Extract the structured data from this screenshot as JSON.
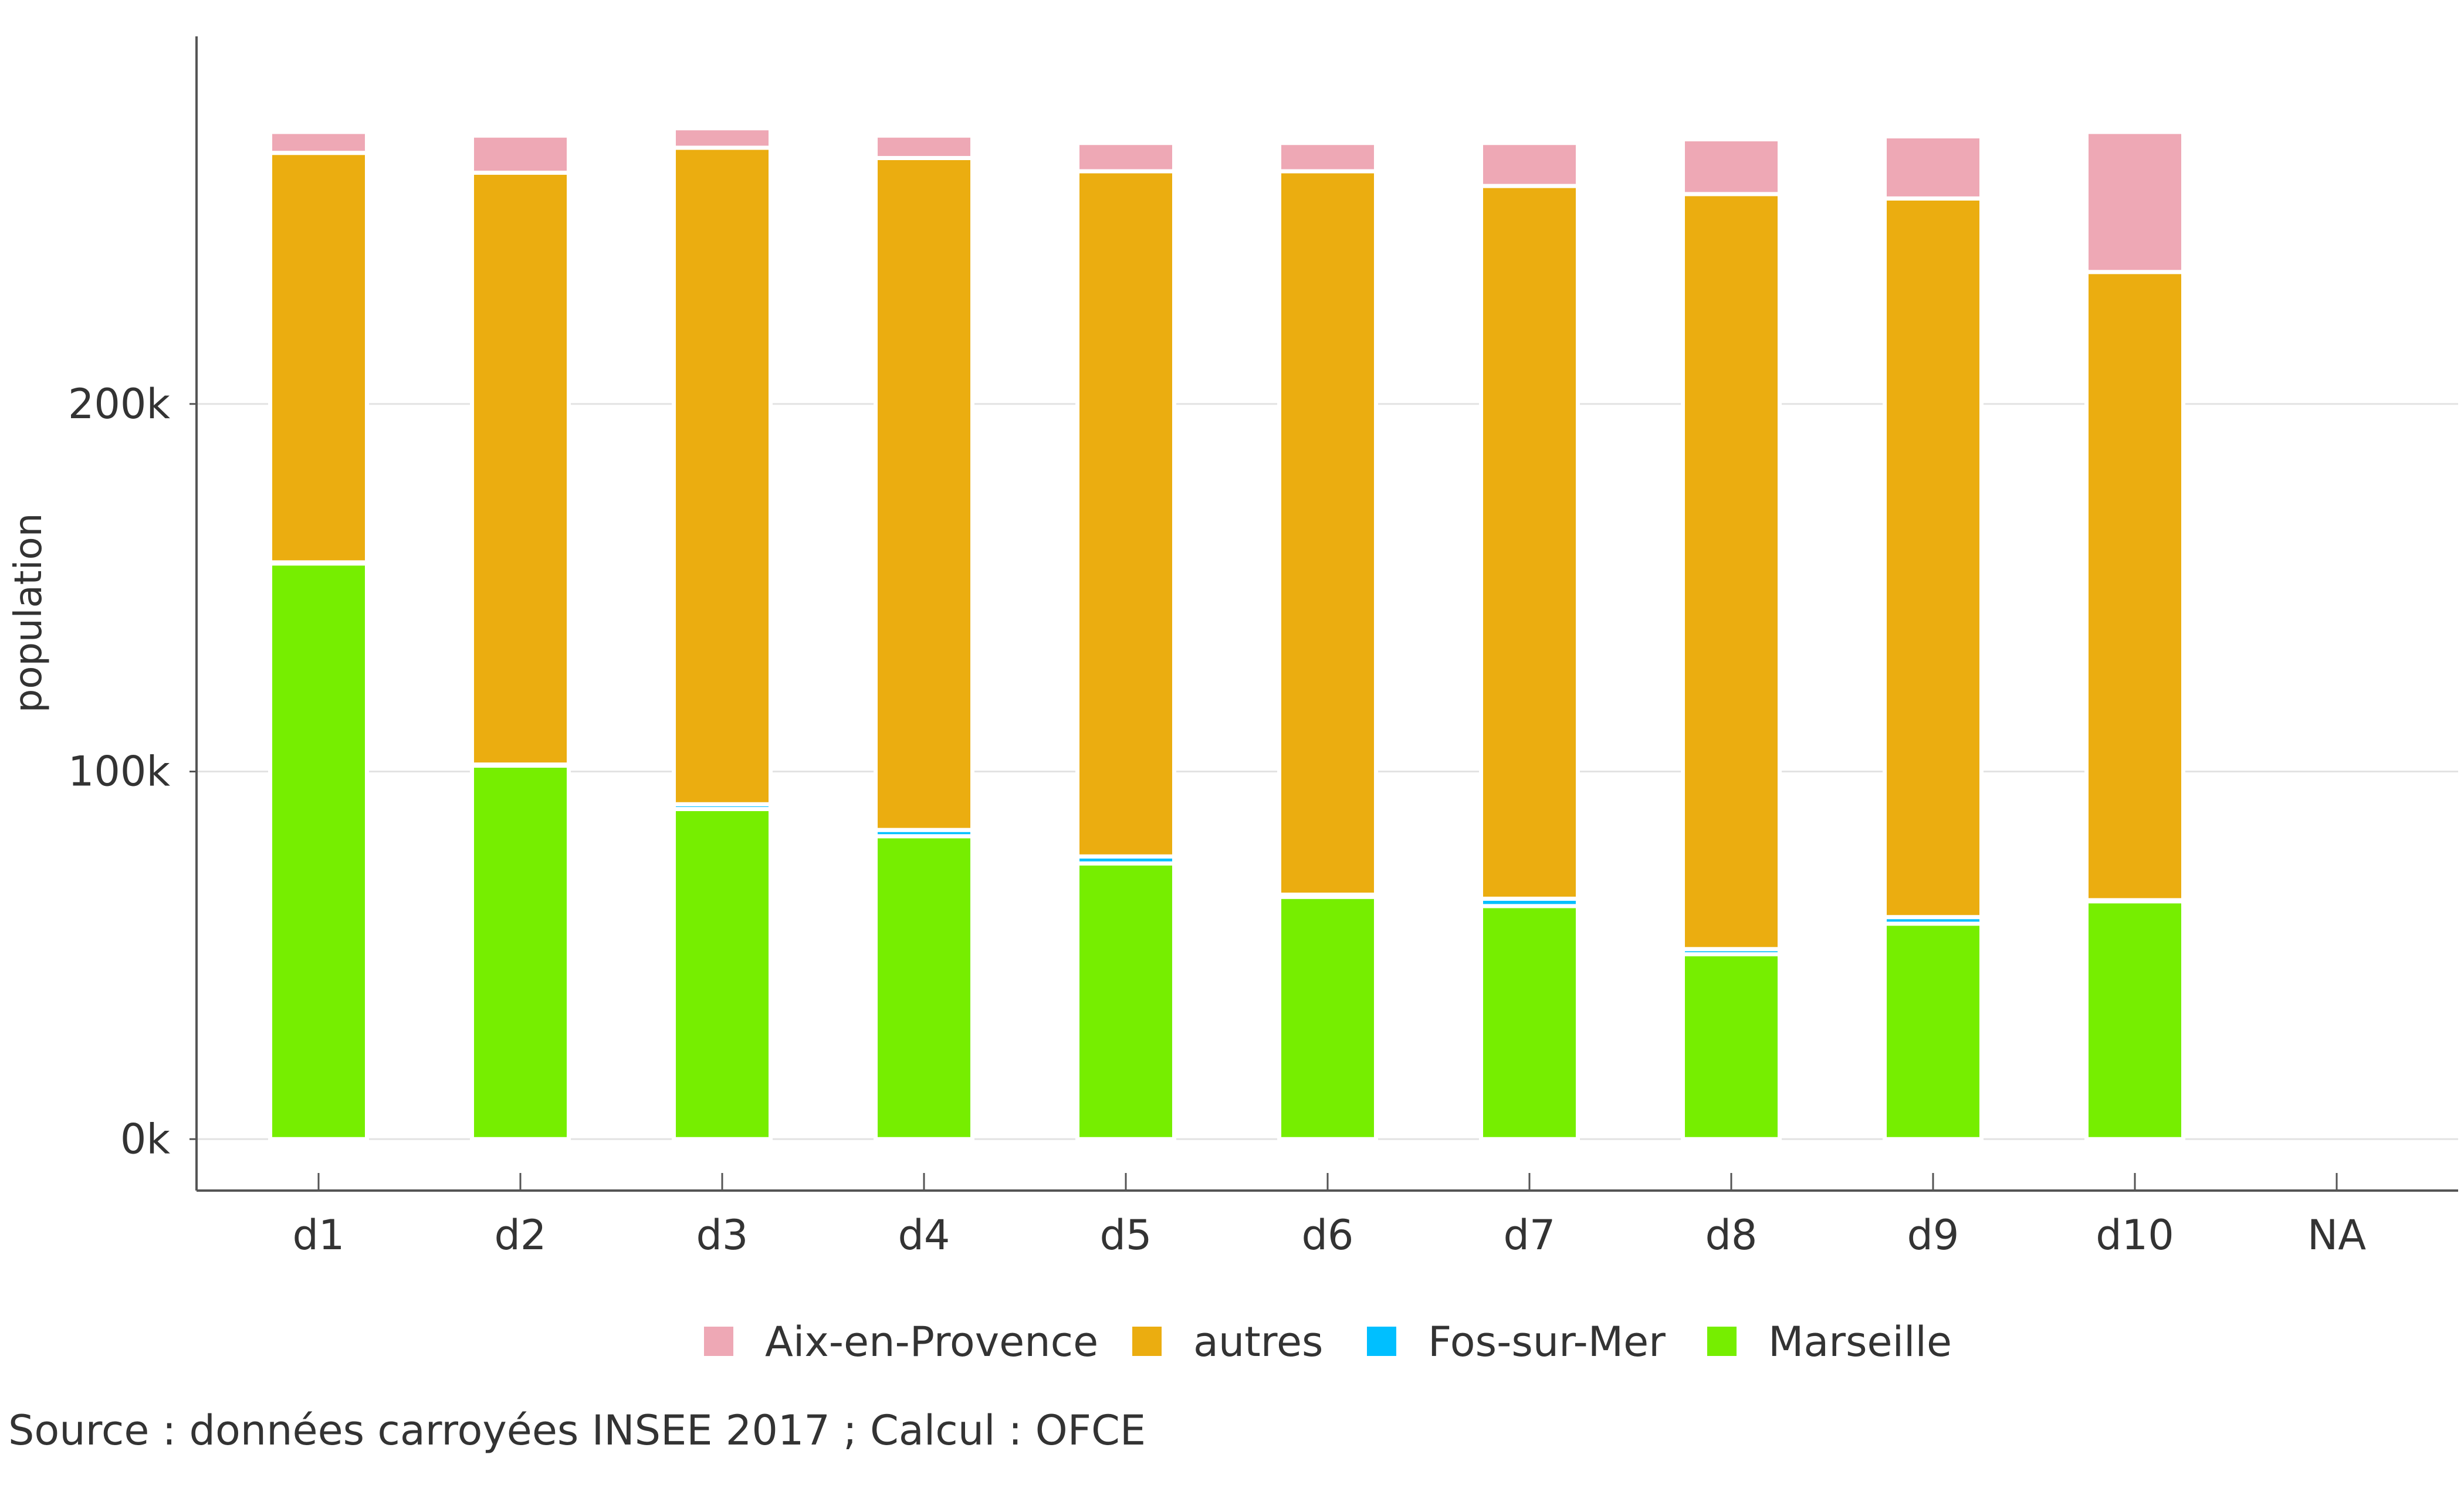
{
  "chart_data": {
    "type": "bar",
    "stacked": true,
    "categories": [
      "d1",
      "d2",
      "d3",
      "d4",
      "d5",
      "d6",
      "d7",
      "d8",
      "d9",
      "d10",
      "NA"
    ],
    "series": [
      {
        "name": "Marseille",
        "color": "#76EE00",
        "values": [
          156600,
          101600,
          89800,
          82400,
          75000,
          65900,
          63400,
          50300,
          58600,
          64700,
          0
        ]
      },
      {
        "name": "Fos-sur-Mer",
        "color": "#00BFFF",
        "values": [
          300,
          300,
          1300,
          1700,
          1900,
          600,
          2000,
          1400,
          1800,
          300,
          0
        ]
      },
      {
        "name": "autres",
        "color": "#EBAD10",
        "values": [
          111400,
          161000,
          178600,
          182800,
          186400,
          196800,
          193900,
          205400,
          195500,
          170900,
          0
        ]
      },
      {
        "name": "Aix-en-Provence",
        "color": "#EEA8B5",
        "values": [
          5700,
          10100,
          5300,
          6100,
          7700,
          7700,
          11700,
          14900,
          16900,
          38100,
          0
        ]
      }
    ],
    "legend_order": [
      "Aix-en-Provence",
      "autres",
      "Fos-sur-Mer",
      "Marseille"
    ],
    "xlabel": "",
    "ylabel": "population",
    "yticks": [
      0,
      100000,
      200000
    ],
    "ytick_labels": [
      "0k",
      "100k",
      "200k"
    ],
    "ylim": [
      -14000,
      300000
    ],
    "grid": true,
    "legend_position": "bottom"
  },
  "caption": "Source : données carroyées INSEE 2017 ; Calcul : OFCE"
}
